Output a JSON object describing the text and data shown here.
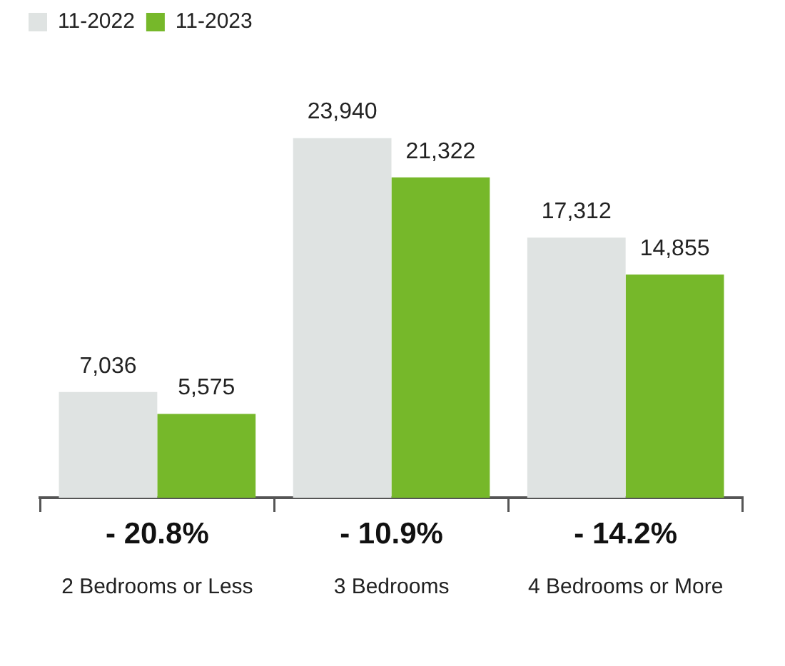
{
  "chart_data": {
    "type": "bar",
    "categories": [
      "2 Bedrooms or Less",
      "3 Bedrooms",
      "4 Bedrooms or More"
    ],
    "series": [
      {
        "name": "11-2022",
        "color": "#dfe3e2",
        "values": [
          7036,
          23940,
          17312
        ],
        "value_labels": [
          "7,036",
          "23,940",
          "17,312"
        ]
      },
      {
        "name": "11-2023",
        "color": "#76b82a",
        "values": [
          5575,
          21322,
          14855
        ],
        "value_labels": [
          "5,575",
          "21,322",
          "14,855"
        ]
      }
    ],
    "tick_labels": "x",
    "legend": "top left",
    "annotations": [
      "- 20.8%",
      "- 10.9%",
      "- 14.2%"
    ]
  }
}
